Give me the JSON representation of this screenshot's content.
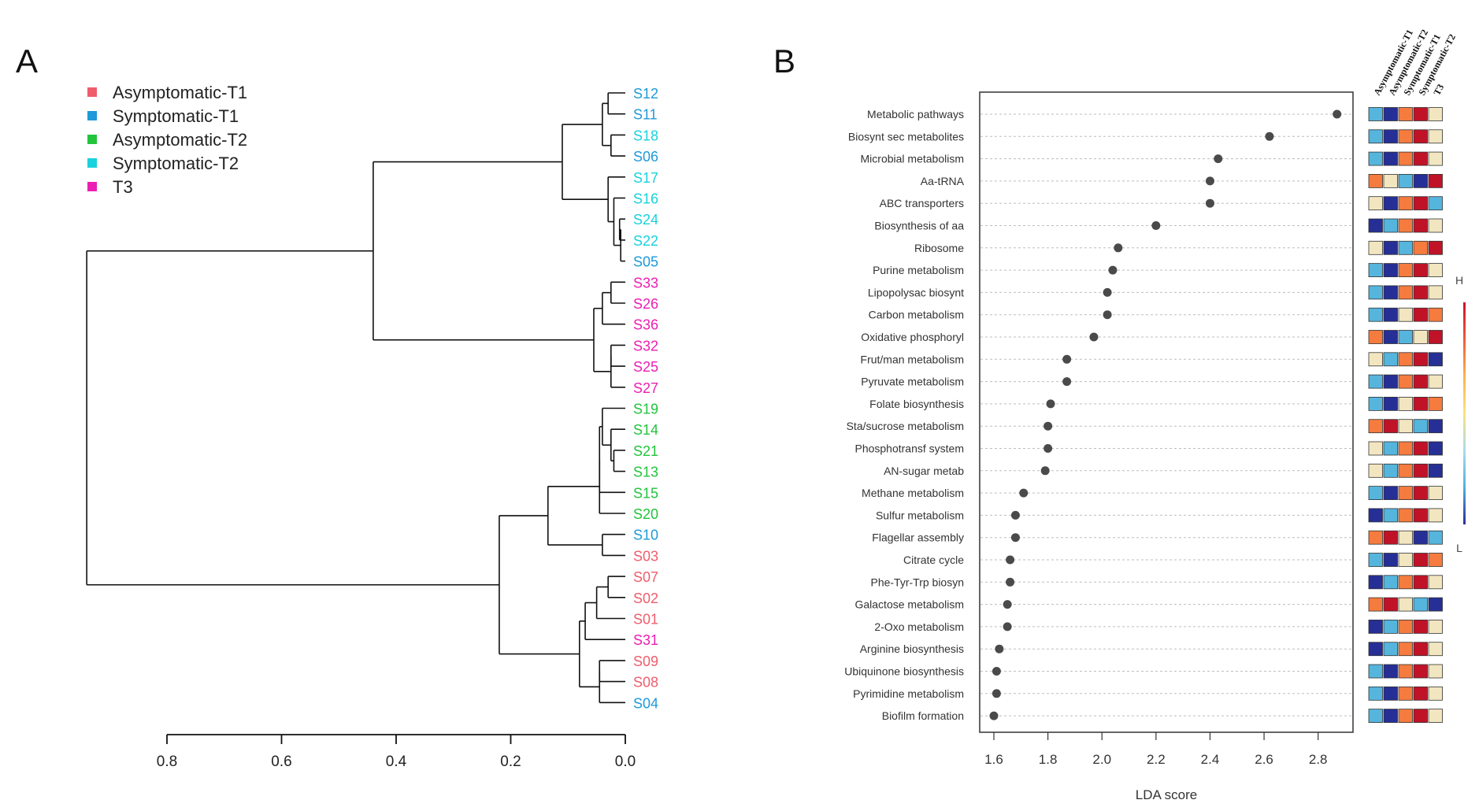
{
  "chart_data": [
    {
      "type": "dendrogram",
      "panel_label": "A",
      "legend": [
        {
          "label": "Asymptomatic-T1",
          "color": "#ef5d6c"
        },
        {
          "label": "Symptomatic-T1",
          "color": "#1d9ad9"
        },
        {
          "label": "Asymptomatic-T2",
          "color": "#22c43c"
        },
        {
          "label": "Symptomatic-T2",
          "color": "#18d2dd"
        },
        {
          "label": "T3",
          "color": "#ec1fb3"
        }
      ],
      "axis": {
        "range": [
          0.8,
          0.0
        ],
        "ticks": [
          0.8,
          0.6,
          0.4,
          0.2,
          0.0
        ],
        "tick_labels": [
          "0.8",
          "0.6",
          "0.4",
          "0.2",
          "0.0"
        ]
      },
      "leaves": [
        {
          "label": "S12",
          "group": 1
        },
        {
          "label": "S11",
          "group": 1
        },
        {
          "label": "S18",
          "group": 3
        },
        {
          "label": "S06",
          "group": 1
        },
        {
          "label": "S17",
          "group": 3
        },
        {
          "label": "S16",
          "group": 3
        },
        {
          "label": "S24",
          "group": 3
        },
        {
          "label": "S22",
          "group": 3
        },
        {
          "label": "S05",
          "group": 1
        },
        {
          "label": "S33",
          "group": 4
        },
        {
          "label": "S26",
          "group": 4
        },
        {
          "label": "S36",
          "group": 4
        },
        {
          "label": "S32",
          "group": 4
        },
        {
          "label": "S25",
          "group": 4
        },
        {
          "label": "S27",
          "group": 4
        },
        {
          "label": "S19",
          "group": 2
        },
        {
          "label": "S14",
          "group": 2
        },
        {
          "label": "S21",
          "group": 2
        },
        {
          "label": "S13",
          "group": 2
        },
        {
          "label": "S15",
          "group": 2
        },
        {
          "label": "S20",
          "group": 2
        },
        {
          "label": "S10",
          "group": 1
        },
        {
          "label": "S03",
          "group": 0
        },
        {
          "label": "S07",
          "group": 0
        },
        {
          "label": "S02",
          "group": 0
        },
        {
          "label": "S01",
          "group": 0
        },
        {
          "label": "S31",
          "group": 4
        },
        {
          "label": "S09",
          "group": 0
        },
        {
          "label": "S08",
          "group": 0
        },
        {
          "label": "S04",
          "group": 1
        }
      ],
      "merges": [
        [
          0,
          1,
          0.03
        ],
        [
          2,
          3,
          0.025
        ],
        [
          -1,
          -2,
          0.04
        ],
        [
          6,
          7,
          0.01
        ],
        [
          -4,
          8,
          0.008
        ],
        [
          5,
          -5,
          0.02
        ],
        [
          4,
          -6,
          0.03
        ],
        [
          -3,
          -7,
          0.11
        ],
        [
          9,
          10,
          0.025
        ],
        [
          -9,
          11,
          0.04
        ],
        [
          12,
          13,
          0.025
        ],
        [
          -11,
          14,
          0.025
        ],
        [
          -10,
          -12,
          0.055
        ],
        [
          -8,
          -13,
          0.44
        ],
        [
          17,
          18,
          0.02
        ],
        [
          16,
          -15,
          0.025
        ],
        [
          15,
          -16,
          0.04
        ],
        [
          -17,
          19,
          0.045
        ],
        [
          -18,
          20,
          0.045
        ],
        [
          21,
          22,
          0.04
        ],
        [
          -19,
          -20,
          0.135
        ],
        [
          23,
          24,
          0.03
        ],
        [
          -22,
          25,
          0.05
        ],
        [
          -23,
          26,
          0.07
        ],
        [
          27,
          28,
          0.045
        ],
        [
          -25,
          29,
          0.045
        ],
        [
          -24,
          -26,
          0.08
        ],
        [
          -21,
          -27,
          0.22
        ],
        [
          -14,
          -28,
          0.94
        ]
      ]
    },
    {
      "type": "scatter",
      "panel_label": "B",
      "xlabel": "LDA score",
      "xlim": [
        1.6,
        2.9
      ],
      "xticks": [
        1.6,
        1.8,
        2.0,
        2.2,
        2.4,
        2.6,
        2.8
      ],
      "xtick_labels": [
        "1.6",
        "1.8",
        "2.0",
        "2.2",
        "2.4",
        "2.6",
        "2.8"
      ],
      "categories": [
        "Metabolic pathways",
        "Biosynt sec metabolites",
        "Microbial metabolism",
        "Aa-tRNA",
        "ABC transporters",
        "Biosynthesis of aa",
        "Ribosome",
        "Purine metabolism",
        "Lipopolysac biosynt",
        "Carbon metabolism",
        "Oxidative phosphoryl",
        "Frut/man metabolism",
        "Pyruvate metabolism",
        "Folate biosynthesis",
        "Sta/sucrose metabolism",
        "Phosphotransf system",
        "AN-sugar metab",
        "Methane metabolism",
        "Sulfur metabolism",
        "Flagellar assembly",
        "Citrate cycle",
        "Phe-Tyr-Trp biosyn",
        "Galactose metabolism",
        "2-Oxo metabolism",
        "Arginine biosynthesis",
        "Ubiquinone biosynthesis",
        "Pyrimidine metabolism",
        "Biofilm formation"
      ],
      "values": [
        2.87,
        2.62,
        2.43,
        2.4,
        2.4,
        2.2,
        2.06,
        2.04,
        2.02,
        2.02,
        1.97,
        1.87,
        1.87,
        1.81,
        1.8,
        1.8,
        1.79,
        1.71,
        1.68,
        1.68,
        1.66,
        1.66,
        1.65,
        1.65,
        1.62,
        1.61,
        1.61,
        1.6
      ],
      "heatmap": {
        "columns": [
          "Asymptomatic-T1",
          "Asymptomatic-T2",
          "Symptomatic-T1",
          "Symptomatic-T2",
          "T3"
        ],
        "levels": [
          [
            2,
            1,
            4,
            5,
            3
          ],
          [
            2,
            1,
            4,
            5,
            3
          ],
          [
            2,
            1,
            4,
            5,
            3
          ],
          [
            4,
            3,
            2,
            1,
            5
          ],
          [
            3,
            1,
            4,
            5,
            2
          ],
          [
            1,
            2,
            4,
            5,
            3
          ],
          [
            3,
            1,
            2,
            4,
            5
          ],
          [
            2,
            1,
            4,
            5,
            3
          ],
          [
            2,
            1,
            4,
            5,
            3
          ],
          [
            2,
            1,
            3,
            5,
            4
          ],
          [
            4,
            1,
            2,
            3,
            5
          ],
          [
            3,
            2,
            4,
            5,
            1
          ],
          [
            2,
            1,
            4,
            5,
            3
          ],
          [
            2,
            1,
            3,
            5,
            4
          ],
          [
            4,
            5,
            3,
            2,
            1
          ],
          [
            3,
            2,
            4,
            5,
            1
          ],
          [
            3,
            2,
            4,
            5,
            1
          ],
          [
            2,
            1,
            4,
            5,
            3
          ],
          [
            1,
            2,
            4,
            5,
            3
          ],
          [
            4,
            5,
            3,
            1,
            2
          ],
          [
            2,
            1,
            3,
            5,
            4
          ],
          [
            1,
            2,
            4,
            5,
            3
          ],
          [
            4,
            5,
            3,
            2,
            1
          ],
          [
            1,
            2,
            4,
            5,
            3
          ],
          [
            1,
            2,
            4,
            5,
            3
          ],
          [
            2,
            1,
            4,
            5,
            3
          ],
          [
            2,
            1,
            4,
            5,
            3
          ],
          [
            2,
            1,
            4,
            5,
            3
          ]
        ],
        "level_colors": [
          "#262f96",
          "#55b5dd",
          "#f2e6c0",
          "#f57b3e",
          "#c01328"
        ],
        "colorbar": {
          "high_label": "H",
          "low_label": "L",
          "colors": [
            "#c8102e",
            "#f15a3a",
            "#fbb548",
            "#fbe27e",
            "#a8dce8",
            "#4fb1dd",
            "#2a2f9a"
          ]
        }
      }
    }
  ]
}
